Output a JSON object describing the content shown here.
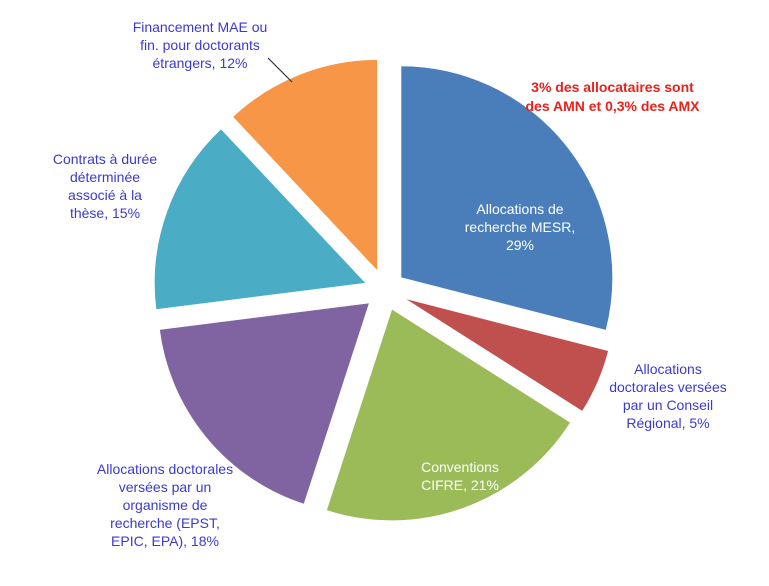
{
  "chart_data": {
    "type": "pie",
    "categories": [
      "Allocations de recherche MESR, 29%",
      "Allocations doctorales versées par un Conseil Régional, 5%",
      "Conventions CIFRE, 21%",
      "Allocations doctorales versées par un organisme de recherche (EPST, EPIC, EPA), 18%",
      "Contrats à durée déterminée associé à la thèse, 15%",
      "Financement MAE ou fin. pour doctorants étrangers, 12%"
    ],
    "values": [
      29,
      5,
      21,
      18,
      15,
      12
    ],
    "colors": [
      "#4a7ebb",
      "#c0504d",
      "#9bbb59",
      "#8064a2",
      "#4bacc6",
      "#f79646"
    ],
    "annotation": "3% des allocataires sont des AMN et 0,3% des AMX"
  }
}
